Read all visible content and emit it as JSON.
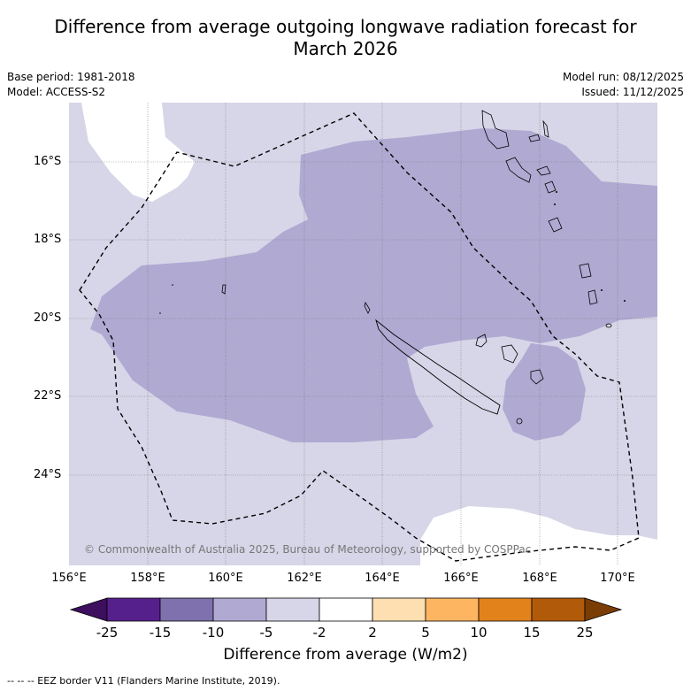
{
  "title_line1": "Difference from average outgoing longwave radiation forecast for",
  "title_line2": "March 2026",
  "meta": {
    "base_period": "Base period: 1981-2018",
    "model": "Model: ACCESS-S2",
    "model_run": "Model run: 08/12/2025",
    "issued": "Issued: 11/12/2025"
  },
  "lat_labels": [
    "16°S",
    "18°S",
    "20°S",
    "22°S",
    "24°S"
  ],
  "lon_labels": [
    "156°E",
    "158°E",
    "160°E",
    "162°E",
    "164°E",
    "166°E",
    "168°E",
    "170°E"
  ],
  "colorbar": {
    "ticks": [
      "-25",
      "-15",
      "-10",
      "-5",
      "-2",
      "2",
      "5",
      "10",
      "15",
      "25"
    ],
    "label": "Difference from average (W/m2)",
    "colors": [
      "#3d0f5e",
      "#56208c",
      "#7f71ad",
      "#b0a9d2",
      "#d6d6e8",
      "#ffffff",
      "#fedfb2",
      "#fdb562",
      "#e2821a",
      "#b15a0a",
      "#7a3d05"
    ]
  },
  "copyright": "© Commonwealth of Australia 2025, Bureau of Meteorology, supported by COSPPac",
  "footer": "--  --  -- EEZ border V11 (Flanders Marine Institute, 2019)."
}
